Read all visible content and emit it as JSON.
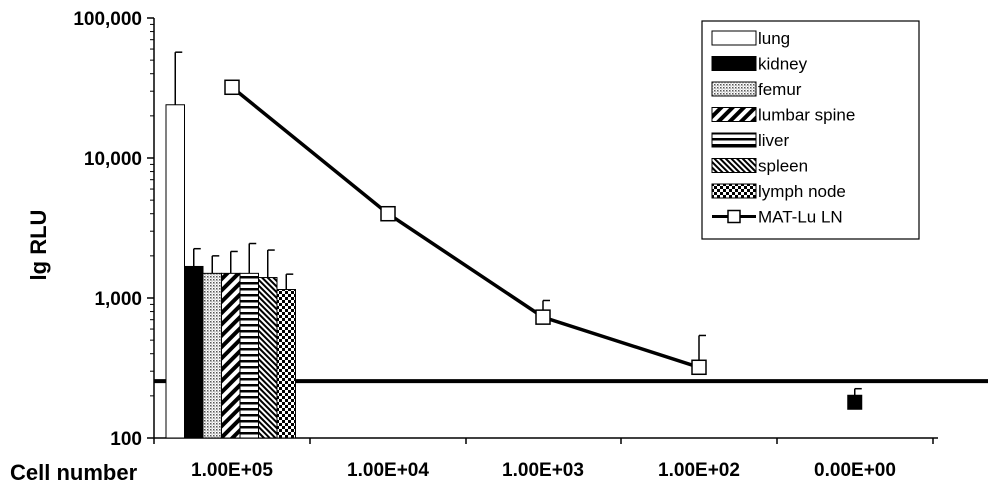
{
  "chart_data": {
    "type": "bar",
    "ylabel": "lg RLU",
    "xlabel": "Cell number",
    "y_scale": "log",
    "ylim": [
      100,
      100000
    ],
    "y_ticks": [
      "100",
      "1,000",
      "10,000",
      "100,000"
    ],
    "categories": [
      "1.00E+05",
      "1.00E+04",
      "1.00E+03",
      "1.00E+02",
      "0.00E+00"
    ],
    "legend_position": "top-right",
    "series": [
      {
        "name": "lung",
        "fill": "white",
        "values": [
          24000,
          null,
          null,
          null,
          null
        ],
        "error": [
          57000,
          null,
          null,
          null,
          null
        ]
      },
      {
        "name": "kidney",
        "fill": "solid-black",
        "values": [
          1680,
          null,
          null,
          null,
          180
        ],
        "error": [
          2250,
          null,
          null,
          null,
          225
        ]
      },
      {
        "name": "femur",
        "fill": "dotted",
        "values": [
          1500,
          null,
          null,
          null,
          null
        ],
        "error": [
          2000,
          null,
          null,
          null,
          null
        ]
      },
      {
        "name": "lumbar spine",
        "fill": "diagonal-hatch",
        "values": [
          1500,
          null,
          null,
          null,
          null
        ],
        "error": [
          2150,
          null,
          null,
          null,
          null
        ]
      },
      {
        "name": "liver",
        "fill": "horizontal-lines",
        "values": [
          1500,
          null,
          null,
          null,
          null
        ],
        "error": [
          2450,
          null,
          null,
          null,
          null
        ]
      },
      {
        "name": "spleen",
        "fill": "fine-diagonal",
        "values": [
          1400,
          null,
          null,
          null,
          null
        ],
        "error": [
          2200,
          null,
          null,
          null,
          null
        ]
      },
      {
        "name": "lymph node",
        "fill": "checker",
        "values": [
          1150,
          null,
          null,
          null,
          null
        ],
        "error": [
          1480,
          null,
          null,
          null,
          null
        ]
      },
      {
        "name": "MAT-Lu  LN",
        "type": "line",
        "marker": "open-square",
        "values": [
          32000,
          4000,
          730,
          320,
          null
        ],
        "error": [
          null,
          null,
          960,
          540,
          null
        ]
      }
    ],
    "threshold_line": 255
  }
}
